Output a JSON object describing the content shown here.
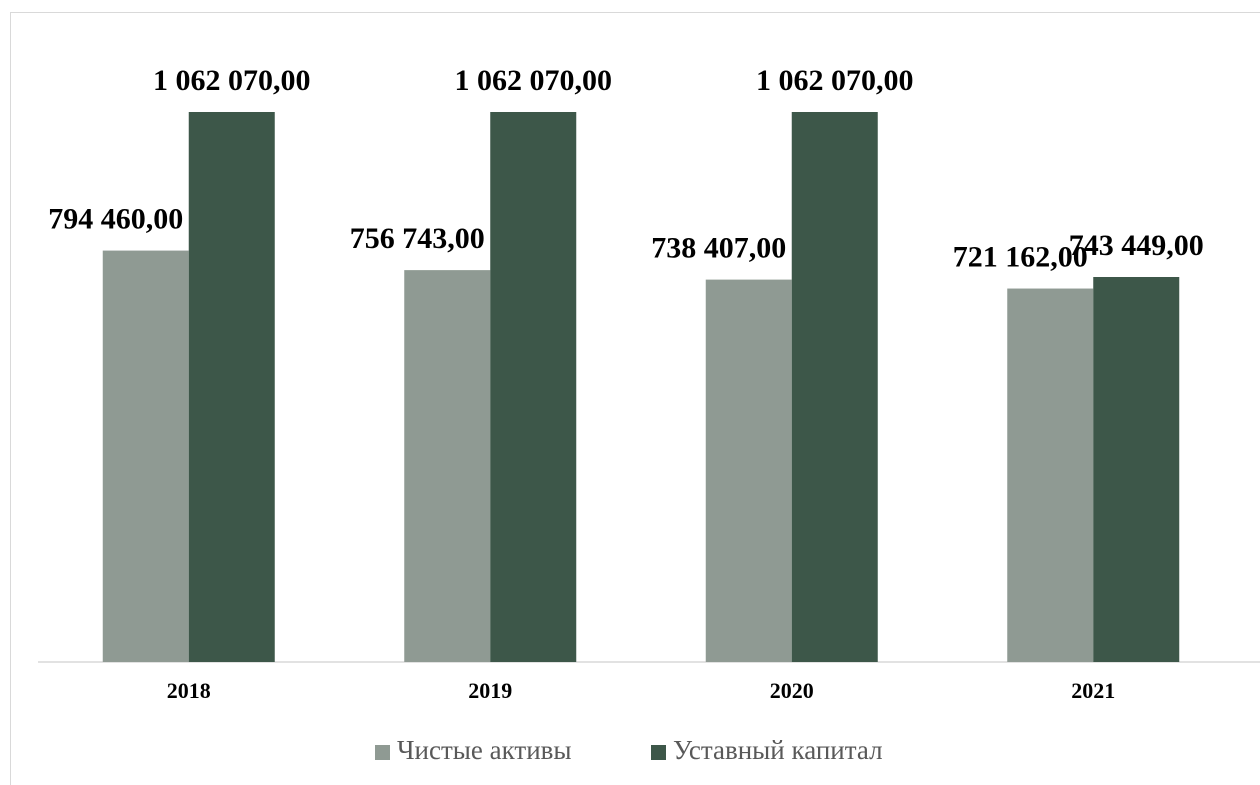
{
  "chart_data": {
    "type": "bar",
    "categories": [
      "2018",
      "2019",
      "2020",
      "2021"
    ],
    "series": [
      {
        "name": "Чистые активы",
        "color": "#8f9a93",
        "values": [
          794460,
          756743,
          738407,
          721162
        ],
        "value_labels": [
          "794 460,00",
          "756 743,00",
          "738 407,00",
          "721 162,00"
        ]
      },
      {
        "name": "Уставный капитал",
        "color": "#3d5749",
        "values": [
          1062070,
          1062070,
          1062070,
          743449
        ],
        "value_labels": [
          "1 062 070,00",
          "1 062 070,00",
          "1 062 070,00",
          "743 449,00"
        ]
      }
    ],
    "legend": "bottom"
  }
}
